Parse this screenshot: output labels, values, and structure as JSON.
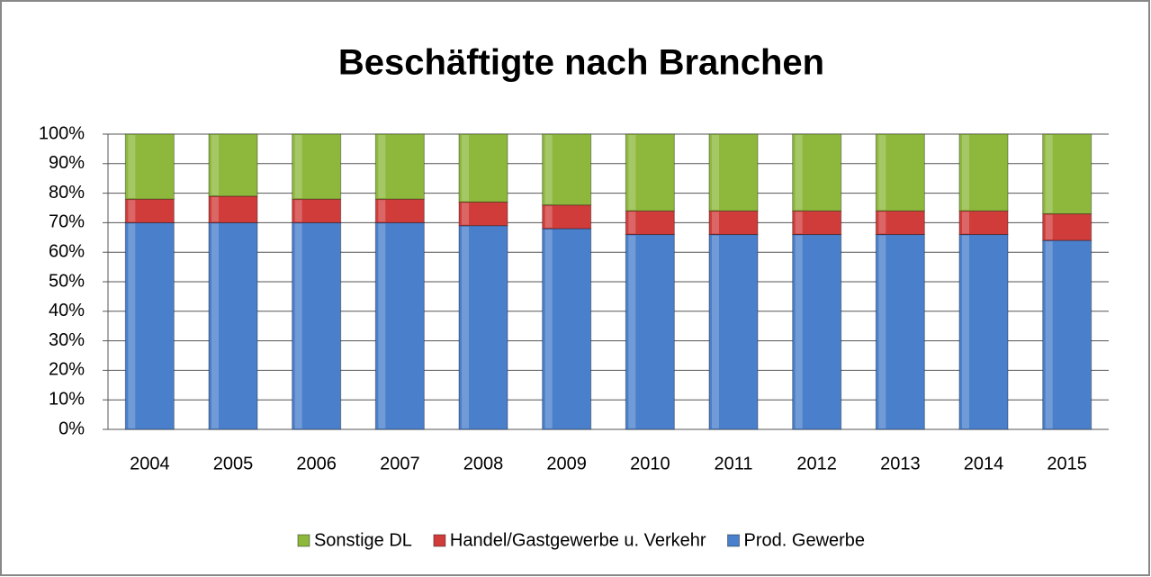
{
  "chart_data": {
    "type": "stacked_bar",
    "title": "Beschäftigte nach Branchen",
    "categories": [
      "2004",
      "2005",
      "2006",
      "2007",
      "2008",
      "2009",
      "2010",
      "2011",
      "2012",
      "2013",
      "2014",
      "2015"
    ],
    "series": [
      {
        "name": "Prod. Gewerbe",
        "color": "#4a7fcb",
        "values": [
          70,
          70,
          70,
          70,
          69,
          68,
          66,
          66,
          66,
          66,
          66,
          64
        ]
      },
      {
        "name": "Handel/Gastgewerbe u. Verkehr",
        "color": "#d03c3a",
        "values": [
          8,
          9,
          8,
          8,
          8,
          8,
          8,
          8,
          8,
          8,
          8,
          9
        ]
      },
      {
        "name": "Sonstige DL",
        "color": "#8db83c",
        "values": [
          22,
          21,
          22,
          22,
          23,
          24,
          26,
          26,
          26,
          26,
          26,
          27
        ]
      }
    ],
    "ylim": [
      0,
      100
    ],
    "yticks": [
      {
        "value": 0,
        "label": "0%"
      },
      {
        "value": 10,
        "label": "10%"
      },
      {
        "value": 20,
        "label": "20%"
      },
      {
        "value": 30,
        "label": "30%"
      },
      {
        "value": 40,
        "label": "40%"
      },
      {
        "value": 50,
        "label": "50%"
      },
      {
        "value": 60,
        "label": "60%"
      },
      {
        "value": 70,
        "label": "70%"
      },
      {
        "value": 80,
        "label": "80%"
      },
      {
        "value": 90,
        "label": "90%"
      },
      {
        "value": 100,
        "label": "100%"
      }
    ],
    "grid": true,
    "legend": "bottom"
  }
}
